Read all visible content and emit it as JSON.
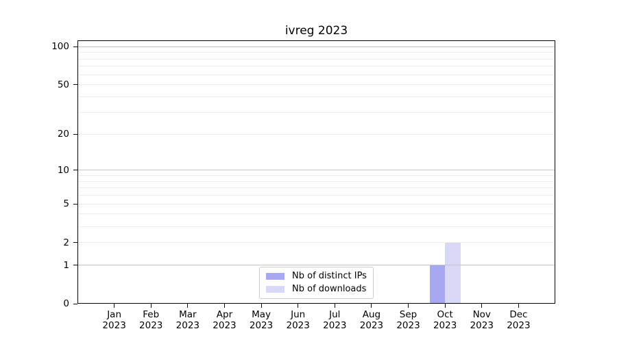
{
  "chart_data": {
    "type": "bar",
    "title": "ivreg 2023",
    "categories": [
      "Jan",
      "Feb",
      "Mar",
      "Apr",
      "May",
      "Jun",
      "Jul",
      "Aug",
      "Sep",
      "Oct",
      "Nov",
      "Dec"
    ],
    "category_sublabel": "2023",
    "series": [
      {
        "name": "Nb of distinct IPs",
        "color": "#a8a8f2",
        "values": [
          0,
          0,
          0,
          0,
          0,
          0,
          0,
          0,
          0,
          1,
          0,
          0
        ]
      },
      {
        "name": "Nb of downloads",
        "color": "#d9d9f7",
        "values": [
          0,
          0,
          0,
          0,
          0,
          0,
          0,
          0,
          0,
          2,
          0,
          0
        ]
      }
    ],
    "yscale": "log1p",
    "ylim": [
      0,
      112
    ],
    "ytick_values": [
      0,
      1,
      2,
      5,
      10,
      20,
      50,
      100
    ],
    "ytick_labels": [
      "0",
      "1",
      "2",
      "5",
      "10",
      "20",
      "50",
      "100"
    ],
    "major_grid_values": [
      1,
      10,
      100
    ],
    "minor_grid_values": [
      2,
      3,
      4,
      5,
      6,
      7,
      8,
      9,
      20,
      30,
      40,
      50,
      60,
      70,
      80,
      90
    ],
    "grid": "horizontal",
    "legend_position": "lower center",
    "colors": {
      "background": "#ffffff",
      "axis": "#000000",
      "text": "#000000",
      "major_grid": "#c2c2c2",
      "minor_grid": "#ececec",
      "legend_border": "#cccccc"
    }
  }
}
